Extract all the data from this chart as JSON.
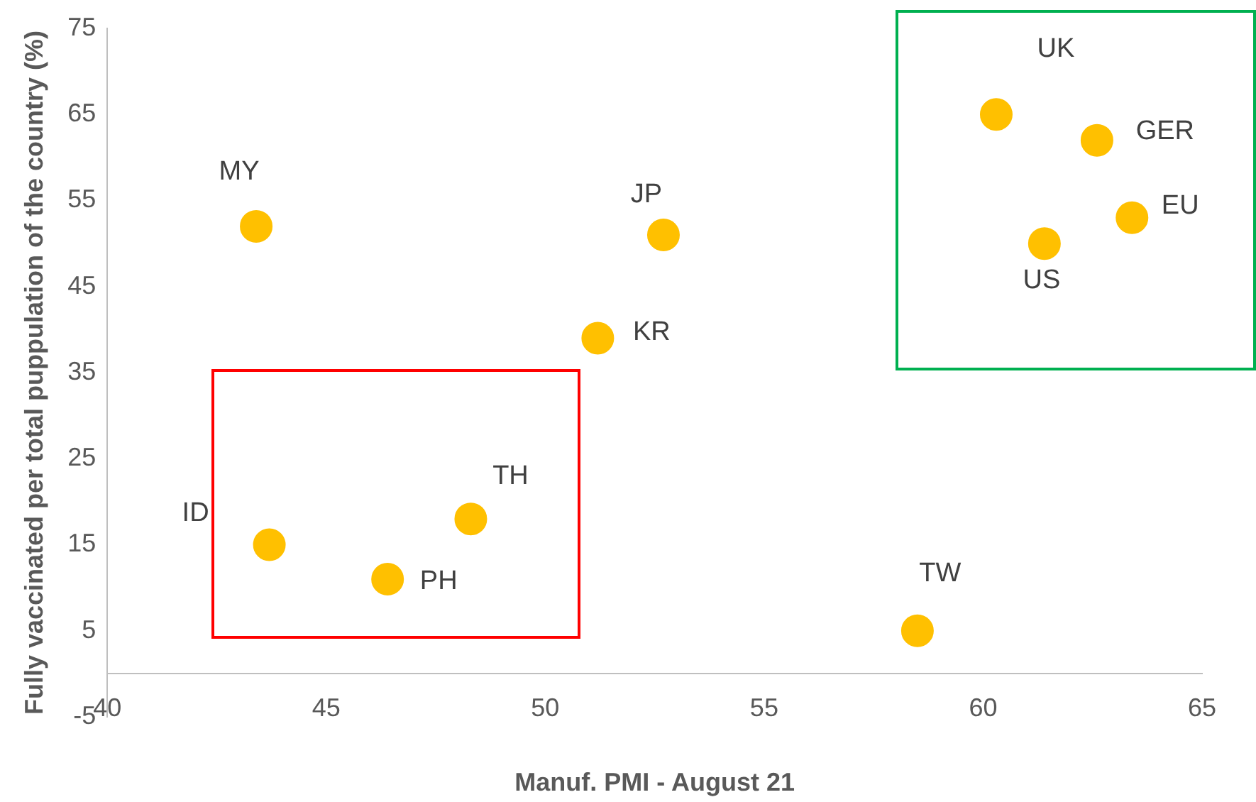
{
  "chart_data": {
    "type": "scatter",
    "xlabel": "Manuf. PMI - August 21",
    "ylabel": "Fully vaccinated per total puppulation of the country (%)",
    "x": [
      43.4,
      52.7,
      51.2,
      43.7,
      46.4,
      48.3,
      58.5,
      60.3,
      62.6,
      63.4,
      61.4
    ],
    "values": [
      52,
      51,
      39,
      15,
      11,
      18,
      5,
      65,
      62,
      53,
      50
    ],
    "color": "#ffc000",
    "marker": "circle",
    "grid": false,
    "legend": false,
    "xlim": [
      40,
      65
    ],
    "xticks": [
      40,
      45,
      50,
      55,
      60,
      65
    ],
    "ylim": [
      -5,
      75
    ],
    "yticks": [
      -5,
      5,
      15,
      25,
      35,
      45,
      55,
      65,
      75
    ],
    "annotations": [
      {
        "text": "MY",
        "x": 43.4,
        "y": 52
      },
      {
        "text": "JP",
        "x": 52.7,
        "y": 51
      },
      {
        "text": "KR",
        "x": 51.2,
        "y": 39
      },
      {
        "text": "ID",
        "x": 43.7,
        "y": 15
      },
      {
        "text": "PH",
        "x": 46.4,
        "y": 11
      },
      {
        "text": "TH",
        "x": 48.3,
        "y": 18
      },
      {
        "text": "TW",
        "x": 58.5,
        "y": 5
      },
      {
        "text": "UK",
        "x": 60.3,
        "y": 65
      },
      {
        "text": "GER",
        "x": 62.6,
        "y": 62
      },
      {
        "text": "EU",
        "x": 63.4,
        "y": 53
      },
      {
        "text": "US",
        "x": 61.4,
        "y": 50
      }
    ]
  }
}
